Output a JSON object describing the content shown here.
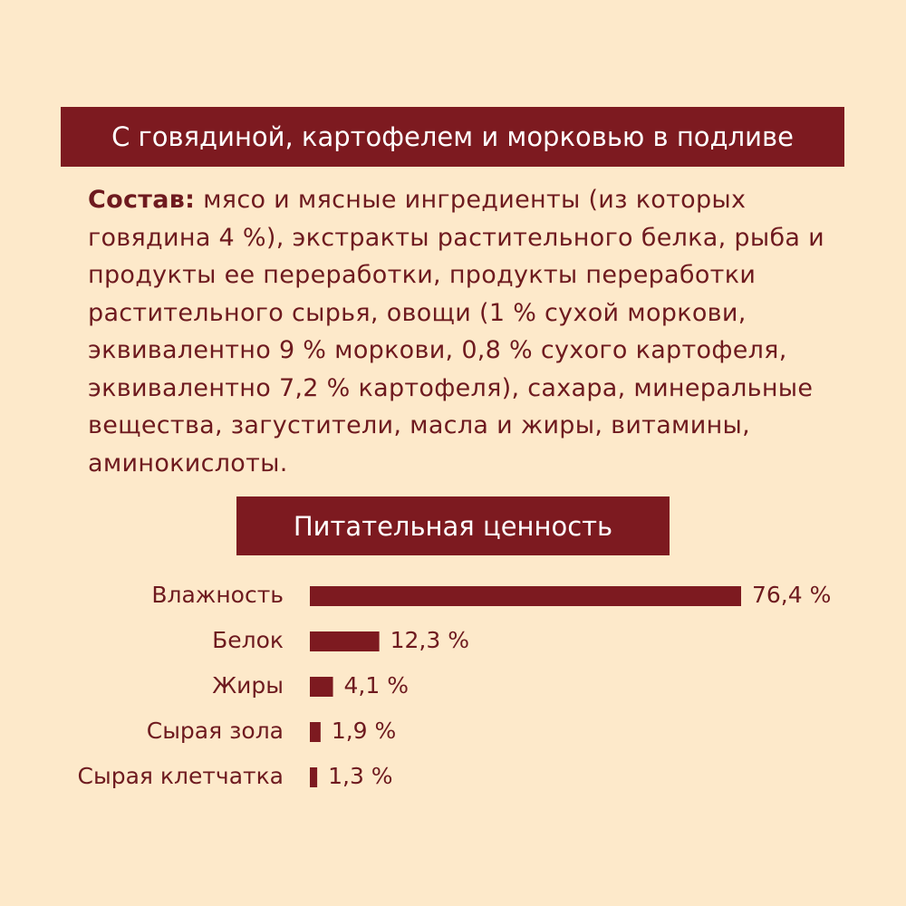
{
  "header": {
    "title": "С говядиной, картофелем и морковью в подливе"
  },
  "composition": {
    "label": "Состав:",
    "text": "мясо и мясные ингредиенты (из которых говядина 4 %), экстракты растительного белка, рыба и продукты ее переработки, продукты переработки растительного сырья, овощи (1 % сухой моркови, эквивалентно 9 % моркови, 0,8 % сухого картофеля, эквивалентно 7,2 % картофеля), сахара, минеральные вещества, загустители, масла и жиры, витамины, аминокислоты."
  },
  "chart_data": {
    "type": "bar",
    "orientation": "horizontal",
    "title": "Питательная ценность",
    "categories": [
      "Влажность",
      "Белок",
      "Жиры",
      "Сырая зола",
      "Сырая клетчатка"
    ],
    "values": [
      76.4,
      12.3,
      4.1,
      1.9,
      1.3
    ],
    "value_labels": [
      "76,4 %",
      "12,3 %",
      "4,1 %",
      "1,9 %",
      "1,3 %"
    ],
    "color": "#7d1a20"
  }
}
